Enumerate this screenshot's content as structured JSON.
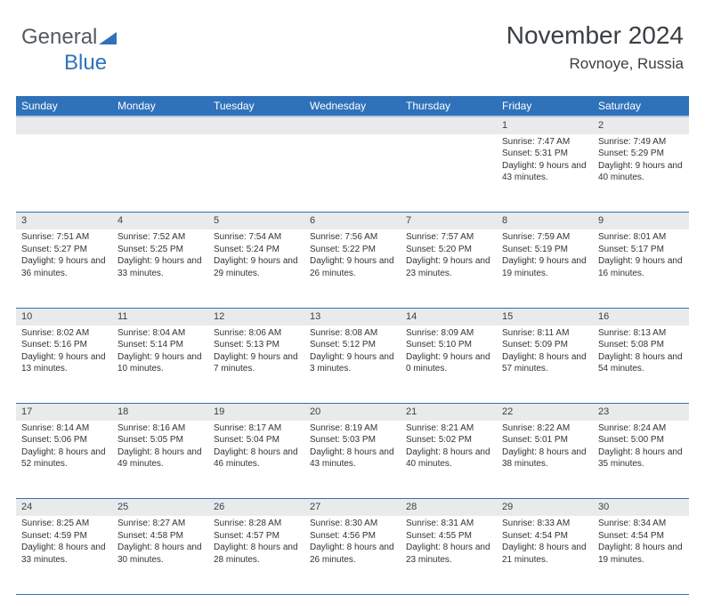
{
  "logo": {
    "text1": "General",
    "text2": "Blue",
    "tri_color": "#2f72b9"
  },
  "header": {
    "month": "November 2024",
    "location": "Rovnoye, Russia"
  },
  "calendar": {
    "header_bg": "#2f72b9",
    "header_fg": "#ffffff",
    "daynum_bg": "#e9eaec",
    "border_color": "#2f72b9",
    "days": [
      "Sunday",
      "Monday",
      "Tuesday",
      "Wednesday",
      "Thursday",
      "Friday",
      "Saturday"
    ],
    "weeks": [
      [
        {
          "n": "",
          "sunrise": "",
          "sunset": "",
          "daylight": ""
        },
        {
          "n": "",
          "sunrise": "",
          "sunset": "",
          "daylight": ""
        },
        {
          "n": "",
          "sunrise": "",
          "sunset": "",
          "daylight": ""
        },
        {
          "n": "",
          "sunrise": "",
          "sunset": "",
          "daylight": ""
        },
        {
          "n": "",
          "sunrise": "",
          "sunset": "",
          "daylight": ""
        },
        {
          "n": "1",
          "sunrise": "Sunrise: 7:47 AM",
          "sunset": "Sunset: 5:31 PM",
          "daylight": "Daylight: 9 hours and 43 minutes."
        },
        {
          "n": "2",
          "sunrise": "Sunrise: 7:49 AM",
          "sunset": "Sunset: 5:29 PM",
          "daylight": "Daylight: 9 hours and 40 minutes."
        }
      ],
      [
        {
          "n": "3",
          "sunrise": "Sunrise: 7:51 AM",
          "sunset": "Sunset: 5:27 PM",
          "daylight": "Daylight: 9 hours and 36 minutes."
        },
        {
          "n": "4",
          "sunrise": "Sunrise: 7:52 AM",
          "sunset": "Sunset: 5:25 PM",
          "daylight": "Daylight: 9 hours and 33 minutes."
        },
        {
          "n": "5",
          "sunrise": "Sunrise: 7:54 AM",
          "sunset": "Sunset: 5:24 PM",
          "daylight": "Daylight: 9 hours and 29 minutes."
        },
        {
          "n": "6",
          "sunrise": "Sunrise: 7:56 AM",
          "sunset": "Sunset: 5:22 PM",
          "daylight": "Daylight: 9 hours and 26 minutes."
        },
        {
          "n": "7",
          "sunrise": "Sunrise: 7:57 AM",
          "sunset": "Sunset: 5:20 PM",
          "daylight": "Daylight: 9 hours and 23 minutes."
        },
        {
          "n": "8",
          "sunrise": "Sunrise: 7:59 AM",
          "sunset": "Sunset: 5:19 PM",
          "daylight": "Daylight: 9 hours and 19 minutes."
        },
        {
          "n": "9",
          "sunrise": "Sunrise: 8:01 AM",
          "sunset": "Sunset: 5:17 PM",
          "daylight": "Daylight: 9 hours and 16 minutes."
        }
      ],
      [
        {
          "n": "10",
          "sunrise": "Sunrise: 8:02 AM",
          "sunset": "Sunset: 5:16 PM",
          "daylight": "Daylight: 9 hours and 13 minutes."
        },
        {
          "n": "11",
          "sunrise": "Sunrise: 8:04 AM",
          "sunset": "Sunset: 5:14 PM",
          "daylight": "Daylight: 9 hours and 10 minutes."
        },
        {
          "n": "12",
          "sunrise": "Sunrise: 8:06 AM",
          "sunset": "Sunset: 5:13 PM",
          "daylight": "Daylight: 9 hours and 7 minutes."
        },
        {
          "n": "13",
          "sunrise": "Sunrise: 8:08 AM",
          "sunset": "Sunset: 5:12 PM",
          "daylight": "Daylight: 9 hours and 3 minutes."
        },
        {
          "n": "14",
          "sunrise": "Sunrise: 8:09 AM",
          "sunset": "Sunset: 5:10 PM",
          "daylight": "Daylight: 9 hours and 0 minutes."
        },
        {
          "n": "15",
          "sunrise": "Sunrise: 8:11 AM",
          "sunset": "Sunset: 5:09 PM",
          "daylight": "Daylight: 8 hours and 57 minutes."
        },
        {
          "n": "16",
          "sunrise": "Sunrise: 8:13 AM",
          "sunset": "Sunset: 5:08 PM",
          "daylight": "Daylight: 8 hours and 54 minutes."
        }
      ],
      [
        {
          "n": "17",
          "sunrise": "Sunrise: 8:14 AM",
          "sunset": "Sunset: 5:06 PM",
          "daylight": "Daylight: 8 hours and 52 minutes."
        },
        {
          "n": "18",
          "sunrise": "Sunrise: 8:16 AM",
          "sunset": "Sunset: 5:05 PM",
          "daylight": "Daylight: 8 hours and 49 minutes."
        },
        {
          "n": "19",
          "sunrise": "Sunrise: 8:17 AM",
          "sunset": "Sunset: 5:04 PM",
          "daylight": "Daylight: 8 hours and 46 minutes."
        },
        {
          "n": "20",
          "sunrise": "Sunrise: 8:19 AM",
          "sunset": "Sunset: 5:03 PM",
          "daylight": "Daylight: 8 hours and 43 minutes."
        },
        {
          "n": "21",
          "sunrise": "Sunrise: 8:21 AM",
          "sunset": "Sunset: 5:02 PM",
          "daylight": "Daylight: 8 hours and 40 minutes."
        },
        {
          "n": "22",
          "sunrise": "Sunrise: 8:22 AM",
          "sunset": "Sunset: 5:01 PM",
          "daylight": "Daylight: 8 hours and 38 minutes."
        },
        {
          "n": "23",
          "sunrise": "Sunrise: 8:24 AM",
          "sunset": "Sunset: 5:00 PM",
          "daylight": "Daylight: 8 hours and 35 minutes."
        }
      ],
      [
        {
          "n": "24",
          "sunrise": "Sunrise: 8:25 AM",
          "sunset": "Sunset: 4:59 PM",
          "daylight": "Daylight: 8 hours and 33 minutes."
        },
        {
          "n": "25",
          "sunrise": "Sunrise: 8:27 AM",
          "sunset": "Sunset: 4:58 PM",
          "daylight": "Daylight: 8 hours and 30 minutes."
        },
        {
          "n": "26",
          "sunrise": "Sunrise: 8:28 AM",
          "sunset": "Sunset: 4:57 PM",
          "daylight": "Daylight: 8 hours and 28 minutes."
        },
        {
          "n": "27",
          "sunrise": "Sunrise: 8:30 AM",
          "sunset": "Sunset: 4:56 PM",
          "daylight": "Daylight: 8 hours and 26 minutes."
        },
        {
          "n": "28",
          "sunrise": "Sunrise: 8:31 AM",
          "sunset": "Sunset: 4:55 PM",
          "daylight": "Daylight: 8 hours and 23 minutes."
        },
        {
          "n": "29",
          "sunrise": "Sunrise: 8:33 AM",
          "sunset": "Sunset: 4:54 PM",
          "daylight": "Daylight: 8 hours and 21 minutes."
        },
        {
          "n": "30",
          "sunrise": "Sunrise: 8:34 AM",
          "sunset": "Sunset: 4:54 PM",
          "daylight": "Daylight: 8 hours and 19 minutes."
        }
      ]
    ]
  }
}
